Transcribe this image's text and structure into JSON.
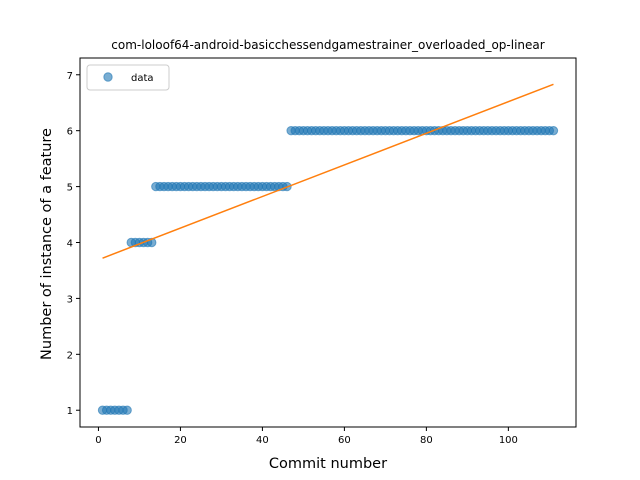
{
  "chart_data": {
    "type": "scatter",
    "title": "com-loloof64-android-basicchessendgamestrainer_overloaded_op-linear",
    "xlabel": "Commit number",
    "ylabel": "Number of instance of a feature",
    "xlim": [
      -4.5,
      116.5
    ],
    "ylim": [
      0.7,
      7.3
    ],
    "xticks": [
      0,
      20,
      40,
      60,
      80,
      100
    ],
    "yticks": [
      1,
      2,
      3,
      4,
      5,
      6,
      7
    ],
    "legend": {
      "placement": "top-left",
      "entries": [
        "data"
      ]
    },
    "colors": {
      "data": "#1f77b4",
      "fit": "#ff7f0e"
    },
    "series": [
      {
        "name": "data",
        "kind": "points",
        "segments": [
          {
            "x_from": 1,
            "x_to": 7,
            "y": 1
          },
          {
            "x_from": 8,
            "x_to": 13,
            "y": 4
          },
          {
            "x_from": 14,
            "x_to": 46,
            "y": 5
          },
          {
            "x_from": 47,
            "x_to": 111,
            "y": 6
          }
        ]
      },
      {
        "kind": "line",
        "x": [
          1,
          111
        ],
        "y": [
          3.72,
          6.83
        ]
      }
    ]
  }
}
